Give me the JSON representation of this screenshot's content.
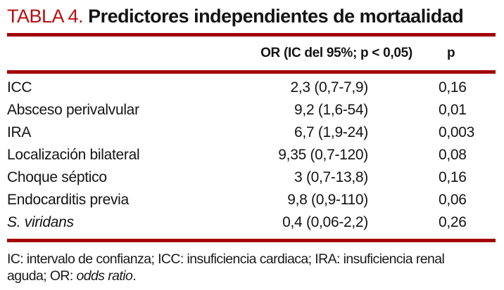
{
  "title": {
    "number": "TABLA 4.",
    "caption": "Predictores independientes de mortaalidad"
  },
  "header": {
    "or_label": "OR (IC del 95%; p < 0,05)",
    "p_label": "p"
  },
  "table": {
    "rows": [
      {
        "label": "ICC",
        "label_italic": false,
        "or": "2,3 (0,7-7,9)",
        "p": "0,16"
      },
      {
        "label": "Absceso perivalvular",
        "label_italic": false,
        "or": "9,2 (1,6-54)",
        "p": "0,01"
      },
      {
        "label": "IRA",
        "label_italic": false,
        "or": "6,7 (1,9-24)",
        "p": "0,003"
      },
      {
        "label": "Localización bilateral",
        "label_italic": false,
        "or": "9,35 (0,7-120)",
        "p": "0,08"
      },
      {
        "label": "Choque séptico",
        "label_italic": false,
        "or": "3 (0,7-13,8)",
        "p": "0,16"
      },
      {
        "label": "Endocarditis previa",
        "label_italic": false,
        "or": "9,8 (0,9-110)",
        "p": "0,06"
      },
      {
        "label": "S. viridans",
        "label_italic": true,
        "or": "0,4 (0,06-2,2)",
        "p": "0,26"
      }
    ]
  },
  "footnote": {
    "line1": "IC: intervalo de confianza; ICC: insuficiencia cardiaca; IRA: insuficiencia renal",
    "line2_before": "aguda; OR: ",
    "line2_italic": "odds ratio",
    "line2_after": "."
  },
  "colors": {
    "accent_red": "#b80d12",
    "rule_red": "#a40008",
    "text": "#141414"
  }
}
